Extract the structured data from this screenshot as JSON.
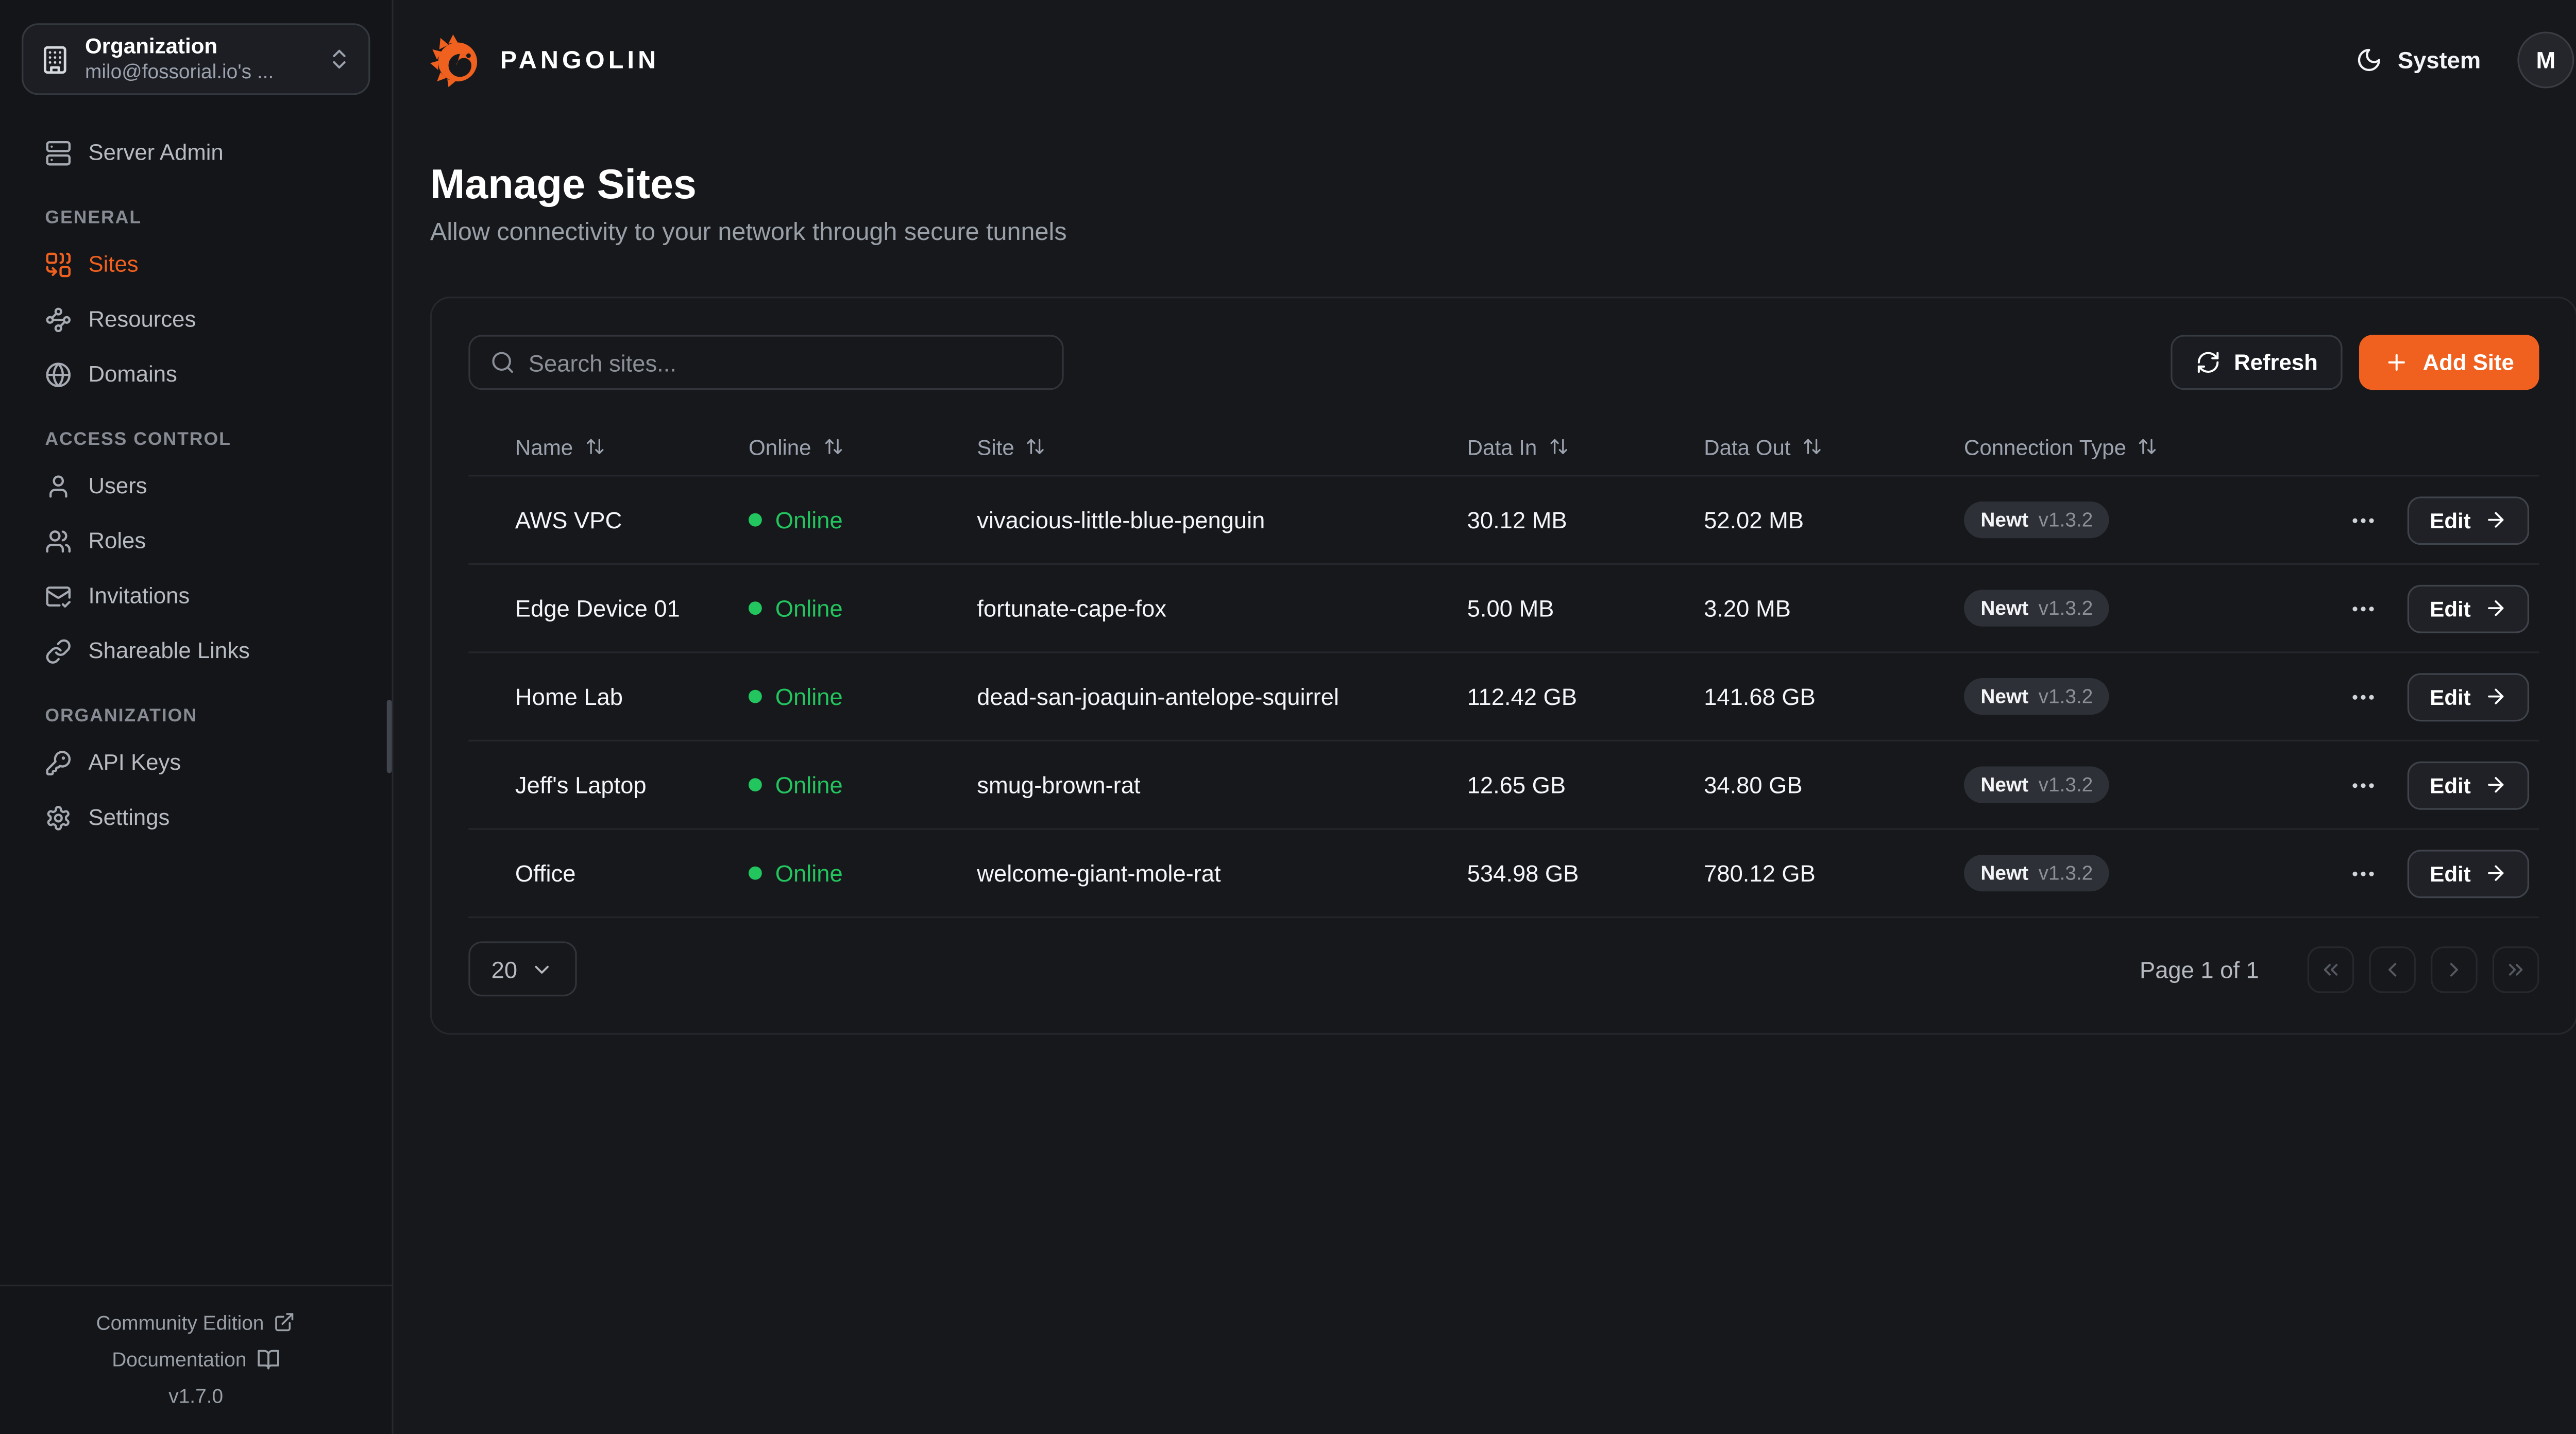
{
  "brand": {
    "name": "PANGOLIN"
  },
  "topbar": {
    "theme_label": "System",
    "avatar_initial": "M"
  },
  "sidebar": {
    "org_switcher": {
      "label": "Organization",
      "value": "milo@fossorial.io's ...",
      "icon": "building"
    },
    "server_admin": {
      "label": "Server Admin",
      "icon": "server"
    },
    "sections": [
      {
        "label": "GENERAL",
        "items": [
          {
            "label": "Sites",
            "icon": "combine",
            "active": true
          },
          {
            "label": "Resources",
            "icon": "waypoints",
            "active": false
          },
          {
            "label": "Domains",
            "icon": "globe",
            "active": false
          }
        ]
      },
      {
        "label": "ACCESS CONTROL",
        "items": [
          {
            "label": "Users",
            "icon": "user",
            "active": false
          },
          {
            "label": "Roles",
            "icon": "users",
            "active": false
          },
          {
            "label": "Invitations",
            "icon": "mail-check",
            "active": false
          },
          {
            "label": "Shareable Links",
            "icon": "link",
            "active": false
          }
        ]
      },
      {
        "label": "ORGANIZATION",
        "items": [
          {
            "label": "API Keys",
            "icon": "key-round",
            "active": false
          },
          {
            "label": "Settings",
            "icon": "settings",
            "active": false
          }
        ]
      }
    ],
    "footer": {
      "community": "Community Edition",
      "documentation": "Documentation",
      "version": "v1.7.0"
    }
  },
  "page": {
    "title": "Manage Sites",
    "subtitle": "Allow connectivity to your network through secure tunnels"
  },
  "toolbar": {
    "search_placeholder": "Search sites...",
    "refresh_label": "Refresh",
    "add_site_label": "Add Site"
  },
  "table": {
    "columns": [
      "Name",
      "Online",
      "Site",
      "Data In",
      "Data Out",
      "Connection Type"
    ],
    "rows": [
      {
        "name": "AWS VPC",
        "status": "Online",
        "site": "vivacious-little-blue-penguin",
        "data_in": "30.12 MB",
        "data_out": "52.02 MB",
        "connection": "Newt",
        "version": "v1.3.2",
        "edit_label": "Edit"
      },
      {
        "name": "Edge Device 01",
        "status": "Online",
        "site": "fortunate-cape-fox",
        "data_in": "5.00 MB",
        "data_out": "3.20 MB",
        "connection": "Newt",
        "version": "v1.3.2",
        "edit_label": "Edit"
      },
      {
        "name": "Home Lab",
        "status": "Online",
        "site": "dead-san-joaquin-antelope-squirrel",
        "data_in": "112.42 GB",
        "data_out": "141.68 GB",
        "connection": "Newt",
        "version": "v1.3.2",
        "edit_label": "Edit"
      },
      {
        "name": "Jeff's Laptop",
        "status": "Online",
        "site": "smug-brown-rat",
        "data_in": "12.65 GB",
        "data_out": "34.80 GB",
        "connection": "Newt",
        "version": "v1.3.2",
        "edit_label": "Edit"
      },
      {
        "name": "Office",
        "status": "Online",
        "site": "welcome-giant-mole-rat",
        "data_in": "534.98 GB",
        "data_out": "780.12 GB",
        "connection": "Newt",
        "version": "v1.3.2",
        "edit_label": "Edit"
      }
    ]
  },
  "pagination": {
    "page_size": "20",
    "status": "Page 1 of 1"
  },
  "colors": {
    "accent": "#f0601e",
    "online": "#22c55e",
    "background": "#17181c",
    "sidebar_background": "#141519",
    "border": "#26282e",
    "badge_background": "#2d3036"
  }
}
